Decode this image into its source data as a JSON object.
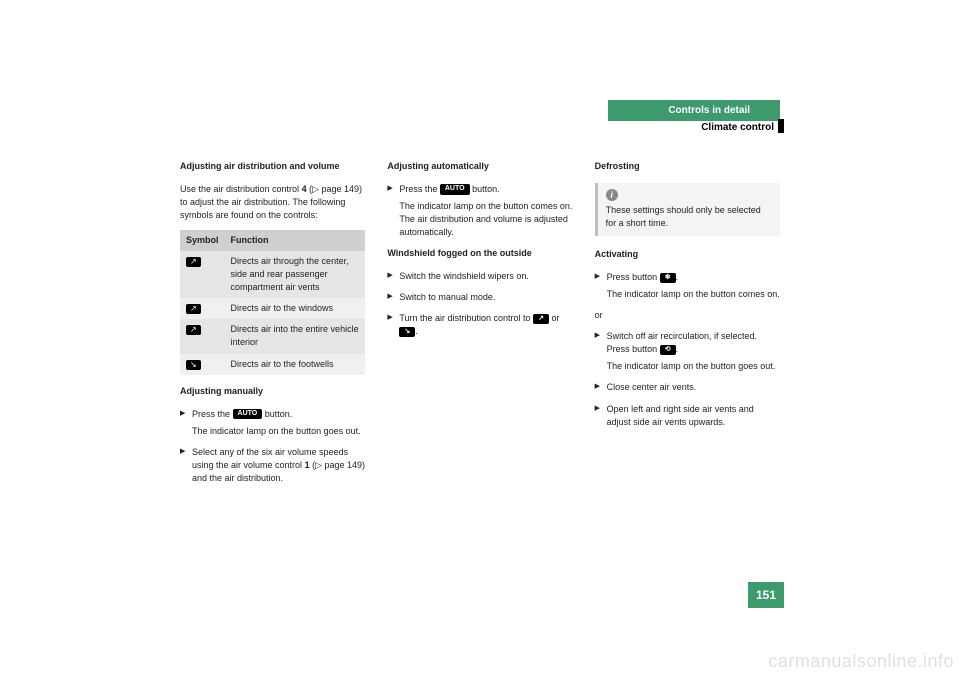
{
  "header": {
    "tab": "Controls in detail",
    "sub": "Climate control"
  },
  "col1": {
    "h1": "Adjusting air distribution and volume",
    "p1_a": "Use the air distribution control ",
    "p1_b": "4",
    "p1_c": " (▷ page 149) to adjust the air distribution. The following symbols are found on the controls:",
    "th1": "Symbol",
    "th2": "Function",
    "r1": "Directs air through the center, side and rear passenger compartment air vents",
    "r2": "Directs air to the windows",
    "r3": "Directs air into the entire vehicle interior",
    "r4": "Directs air to the footwells",
    "h2": "Adjusting manually",
    "s1a": "Press the ",
    "s1b": "AUTO",
    "s1c": " button.",
    "s1sub": "The indicator lamp on the button goes out.",
    "s2a": "Select any of the six air volume speeds using the air volume control ",
    "s2b": "1",
    "s2c": " (▷ page 149) and the air distribution."
  },
  "col2": {
    "h1": "Adjusting automatically",
    "s1a": "Press the ",
    "s1b": "AUTO",
    "s1c": " button.",
    "s1sub": "The indicator lamp on the button comes on. The air distribution and volume is adjusted automatically.",
    "h2": "Windshield fogged on the outside",
    "s2": "Switch the windshield wipers on.",
    "s3": "Switch to manual mode.",
    "s4a": "Turn the air distribution control to ",
    "s4b": " or ",
    "s4c": "."
  },
  "col3": {
    "h1": "Defrosting",
    "note": "These settings should only be selected for a short time.",
    "h2": "Activating",
    "s1a": "Press button ",
    "s1c": ".",
    "s1sub": "The indicator lamp on the button comes on.",
    "or": "or",
    "s2a": "Switch off air recirculation, if selected. Press button ",
    "s2c": ".",
    "s2sub": "The indicator lamp on the button goes out.",
    "s3": "Close center air vents.",
    "s4": "Open left and right side air vents and adjust side air vents upwards."
  },
  "pagenum": "151",
  "watermark": "carmanualsonline.info"
}
